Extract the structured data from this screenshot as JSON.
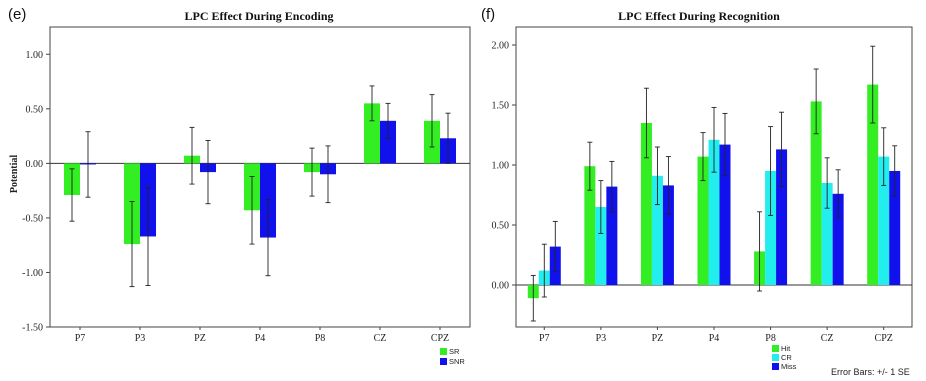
{
  "panels": [
    {
      "letter": "(e)",
      "title": "LPC Effect During Encoding",
      "ylabel": "Potential",
      "chart_data": {
        "type": "bar",
        "title": "LPC Effect During Encoding",
        "xlabel": "",
        "ylabel": "Potential",
        "ylim": [
          -1.5,
          1.25
        ],
        "yticks": [
          -1.5,
          -1.0,
          -0.5,
          0.0,
          0.5,
          1.0
        ],
        "ytick_labels": [
          "-1.50",
          "-1.00",
          "-0.50",
          "0.00",
          "0.50",
          "1.00"
        ],
        "categories": [
          "P7",
          "P3",
          "PZ",
          "P4",
          "P8",
          "CZ",
          "CPZ"
        ],
        "series": [
          {
            "name": "SR",
            "color": "#33ee22",
            "values": [
              -0.29,
              -0.74,
              0.07,
              -0.43,
              -0.08,
              0.55,
              0.39
            ],
            "error": [
              0.24,
              0.39,
              0.26,
              0.31,
              0.22,
              0.16,
              0.24
            ]
          },
          {
            "name": "SNR",
            "color": "#1111ee",
            "values": [
              -0.01,
              -0.67,
              -0.08,
              -0.68,
              -0.1,
              0.39,
              0.23
            ],
            "error": [
              0.3,
              0.45,
              0.29,
              0.35,
              0.26,
              0.16,
              0.23
            ]
          }
        ],
        "legend": "bottom-right",
        "grid": false
      }
    },
    {
      "letter": "(f)",
      "title": "LPC Effect During Recognition",
      "ylabel": "",
      "chart_data": {
        "type": "bar",
        "title": "LPC Effect During Recognition",
        "xlabel": "",
        "ylabel": "",
        "ylim": [
          -0.35,
          2.15
        ],
        "yticks": [
          0.0,
          0.5,
          1.0,
          1.5,
          2.0
        ],
        "ytick_labels": [
          "0.00",
          "0.50",
          "1.00",
          "1.50",
          "2.00"
        ],
        "categories": [
          "P7",
          "P3",
          "PZ",
          "P4",
          "P8",
          "CZ",
          "CPZ"
        ],
        "series": [
          {
            "name": "Hit",
            "color": "#33ee22",
            "values": [
              -0.11,
              0.99,
              1.35,
              1.07,
              0.28,
              1.53,
              1.67
            ],
            "error": [
              0.19,
              0.2,
              0.29,
              0.2,
              0.33,
              0.27,
              0.32
            ]
          },
          {
            "name": "CR",
            "color": "#22eeee",
            "values": [
              0.12,
              0.65,
              0.91,
              1.21,
              0.95,
              0.85,
              1.07
            ],
            "error": [
              0.22,
              0.22,
              0.24,
              0.27,
              0.37,
              0.21,
              0.24
            ]
          },
          {
            "name": "Miss",
            "color": "#1111ee",
            "values": [
              0.32,
              0.82,
              0.83,
              1.17,
              1.13,
              0.76,
              0.95
            ],
            "error": [
              0.21,
              0.21,
              0.24,
              0.26,
              0.31,
              0.2,
              0.21
            ]
          }
        ],
        "legend": "bottom-right",
        "grid": false
      },
      "note": "Error Bars: +/- 1 SE"
    }
  ]
}
